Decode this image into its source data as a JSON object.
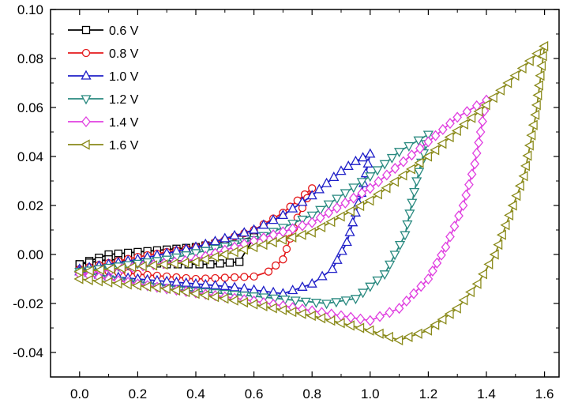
{
  "chart_data": {
    "type": "line",
    "title": "",
    "xlabel": "",
    "ylabel": "",
    "xlim": [
      -0.1,
      1.65
    ],
    "ylim": [
      -0.05,
      0.1
    ],
    "x_ticks": [
      "0.0",
      "0.2",
      "0.4",
      "0.6",
      "0.8",
      "1.0",
      "1.2",
      "1.4",
      "1.6"
    ],
    "y_ticks": [
      "-0.04",
      "-0.02",
      "0.00",
      "0.02",
      "0.04",
      "0.06",
      "0.08",
      "0.10"
    ],
    "grid": false,
    "legend_position": "top-left",
    "series": [
      {
        "name": "0.6 V",
        "color": "#000000",
        "marker": "square",
        "upper": [
          [
            0.0,
            -0.004
          ],
          [
            0.1,
            0.0
          ],
          [
            0.2,
            0.001
          ],
          [
            0.3,
            0.002
          ],
          [
            0.4,
            0.003
          ],
          [
            0.5,
            0.005
          ],
          [
            0.55,
            0.006
          ],
          [
            0.6,
            0.007
          ]
        ],
        "lower": [
          [
            0.6,
            -0.002
          ],
          [
            0.55,
            -0.003
          ],
          [
            0.45,
            -0.004
          ],
          [
            0.3,
            -0.004
          ],
          [
            0.2,
            -0.003
          ],
          [
            0.1,
            -0.002
          ],
          [
            0.0,
            -0.004
          ]
        ]
      },
      {
        "name": "0.8 V",
        "color": "#e41a1c",
        "marker": "circle",
        "upper": [
          [
            0.0,
            -0.006
          ],
          [
            0.2,
            -0.001
          ],
          [
            0.4,
            0.003
          ],
          [
            0.5,
            0.006
          ],
          [
            0.6,
            0.01
          ],
          [
            0.7,
            0.017
          ],
          [
            0.75,
            0.022
          ],
          [
            0.8,
            0.027
          ]
        ],
        "lower": [
          [
            0.8,
            0.027
          ],
          [
            0.75,
            0.015
          ],
          [
            0.7,
            -0.002
          ],
          [
            0.65,
            -0.007
          ],
          [
            0.6,
            -0.009
          ],
          [
            0.4,
            -0.01
          ],
          [
            0.2,
            -0.008
          ],
          [
            0.0,
            -0.006
          ]
        ]
      },
      {
        "name": "1.0 V",
        "color": "#1f1fc8",
        "marker": "triangle-up",
        "upper": [
          [
            0.0,
            -0.006
          ],
          [
            0.2,
            -0.002
          ],
          [
            0.4,
            0.003
          ],
          [
            0.6,
            0.01
          ],
          [
            0.7,
            0.016
          ],
          [
            0.8,
            0.024
          ],
          [
            0.9,
            0.034
          ],
          [
            0.95,
            0.038
          ],
          [
            1.0,
            0.041
          ]
        ],
        "lower": [
          [
            1.0,
            0.041
          ],
          [
            0.97,
            0.025
          ],
          [
            0.92,
            0.005
          ],
          [
            0.87,
            -0.006
          ],
          [
            0.8,
            -0.012
          ],
          [
            0.7,
            -0.016
          ],
          [
            0.5,
            -0.013
          ],
          [
            0.3,
            -0.011
          ],
          [
            0.1,
            -0.009
          ],
          [
            0.0,
            -0.007
          ]
        ]
      },
      {
        "name": "1.2 V",
        "color": "#2a8a80",
        "marker": "triangle-down",
        "upper": [
          [
            0.0,
            -0.007
          ],
          [
            0.3,
            -0.002
          ],
          [
            0.6,
            0.006
          ],
          [
            0.8,
            0.016
          ],
          [
            1.0,
            0.032
          ],
          [
            1.1,
            0.042
          ],
          [
            1.2,
            0.049
          ]
        ],
        "lower": [
          [
            1.2,
            0.049
          ],
          [
            1.16,
            0.03
          ],
          [
            1.12,
            0.008
          ],
          [
            1.05,
            -0.008
          ],
          [
            0.95,
            -0.018
          ],
          [
            0.85,
            -0.02
          ],
          [
            0.6,
            -0.017
          ],
          [
            0.3,
            -0.014
          ],
          [
            0.0,
            -0.008
          ]
        ]
      },
      {
        "name": "1.4 V",
        "color": "#e040e0",
        "marker": "diamond",
        "upper": [
          [
            0.0,
            -0.008
          ],
          [
            0.4,
            -0.002
          ],
          [
            0.8,
            0.013
          ],
          [
            1.0,
            0.027
          ],
          [
            1.2,
            0.046
          ],
          [
            1.3,
            0.056
          ],
          [
            1.4,
            0.063
          ]
        ],
        "lower": [
          [
            1.4,
            0.063
          ],
          [
            1.36,
            0.037
          ],
          [
            1.32,
            0.02
          ],
          [
            1.26,
            0.003
          ],
          [
            1.2,
            -0.01
          ],
          [
            1.1,
            -0.022
          ],
          [
            1.0,
            -0.027
          ],
          [
            0.9,
            -0.025
          ],
          [
            0.6,
            -0.019
          ],
          [
            0.3,
            -0.014
          ],
          [
            0.0,
            -0.008
          ]
        ]
      },
      {
        "name": "1.6 V",
        "color": "#8a8a1a",
        "marker": "triangle-left",
        "upper": [
          [
            0.0,
            -0.007
          ],
          [
            0.4,
            -0.003
          ],
          [
            0.8,
            0.009
          ],
          [
            1.0,
            0.022
          ],
          [
            1.2,
            0.04
          ],
          [
            1.4,
            0.061
          ],
          [
            1.5,
            0.073
          ],
          [
            1.6,
            0.085
          ]
        ],
        "lower": [
          [
            1.6,
            0.085
          ],
          [
            1.57,
            0.057
          ],
          [
            1.53,
            0.032
          ],
          [
            1.48,
            0.016
          ],
          [
            1.43,
            0.0
          ],
          [
            1.37,
            -0.012
          ],
          [
            1.3,
            -0.022
          ],
          [
            1.2,
            -0.031
          ],
          [
            1.1,
            -0.035
          ],
          [
            1.0,
            -0.031
          ],
          [
            0.8,
            -0.025
          ],
          [
            0.5,
            -0.018
          ],
          [
            0.3,
            -0.014
          ],
          [
            0.0,
            -0.01
          ]
        ]
      }
    ]
  }
}
